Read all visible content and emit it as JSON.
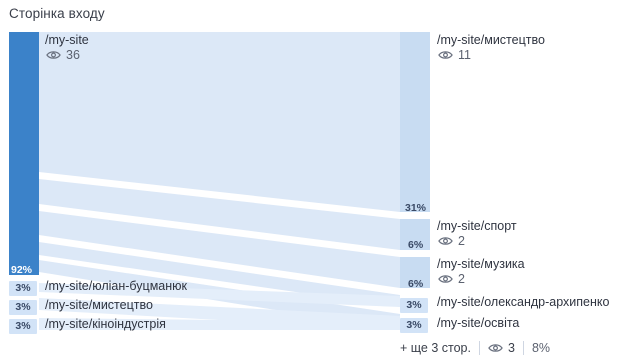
{
  "title": "Сторінка входу",
  "colors": {
    "main_bar": "#3b82c9",
    "flow": "#dce8f7",
    "target": "#c8dcf2",
    "chip": "#d2e3f7"
  },
  "source_main": {
    "label": "/my-site",
    "views": "36",
    "pct": "92%"
  },
  "sources_small": [
    {
      "label": "/my-site/юліан-буцманюк",
      "pct": "3%"
    },
    {
      "label": "/my-site/мистецтво",
      "pct": "3%"
    },
    {
      "label": "/my-site/кіноіндустрія",
      "pct": "3%"
    }
  ],
  "targets": [
    {
      "label": "/my-site/мистецтво",
      "views": "11",
      "pct": "31%"
    },
    {
      "label": "/my-site/спорт",
      "views": "2",
      "pct": "6%"
    },
    {
      "label": "/my-site/музика",
      "views": "2",
      "pct": "6%"
    },
    {
      "label": "/my-site/олександр-архипенко",
      "pct": "3%"
    },
    {
      "label": "/my-site/освіта",
      "pct": "3%"
    }
  ],
  "footer": {
    "more_label": "+ ще 3 стор.",
    "views": "3",
    "pct": "8%"
  },
  "icons": {
    "views": "eye-icon"
  }
}
